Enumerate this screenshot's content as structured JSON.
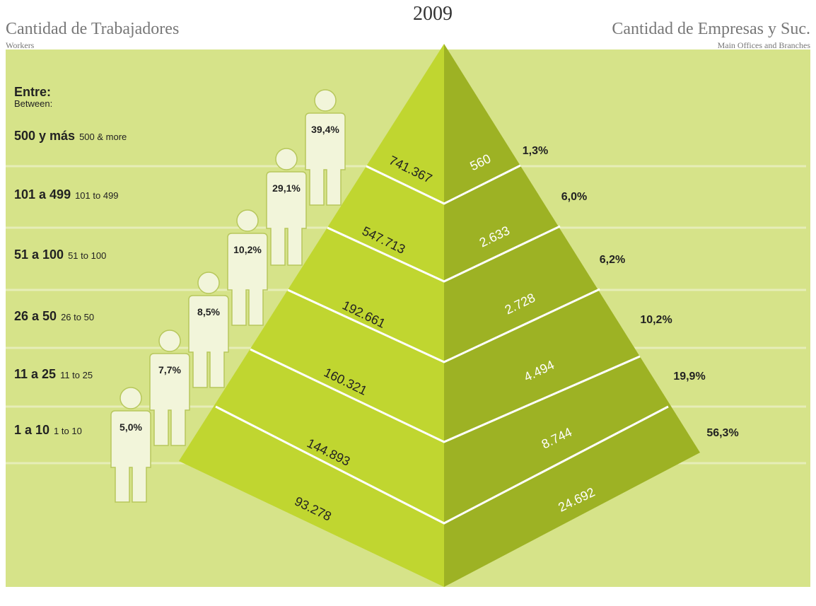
{
  "title": "2009",
  "left_header": {
    "title": "Cantidad de Trabajadores",
    "subtitle": "Workers"
  },
  "right_header": {
    "title": "Cantidad de Empresas y Suc.",
    "subtitle": "Main Offices and Branches"
  },
  "range_heading": {
    "title": "Entre:",
    "subtitle": "Between:"
  },
  "rows": [
    {
      "label": "500 y más",
      "label_en": "500 & more",
      "workers_pct": "39,4%",
      "workers": "741.367",
      "companies": "560",
      "companies_pct": "1,3%"
    },
    {
      "label": "101 a 499",
      "label_en": "101 to 499",
      "workers_pct": "29,1%",
      "workers": "547.713",
      "companies": "2.633",
      "companies_pct": "6,0%"
    },
    {
      "label": "51 a 100",
      "label_en": "51 to 100",
      "workers_pct": "10,2%",
      "workers": "192.661",
      "companies": "2.728",
      "companies_pct": "6,2%"
    },
    {
      "label": "26 a 50",
      "label_en": "26 to 50",
      "workers_pct": "8,5%",
      "workers": "160.321",
      "companies": "4.494",
      "companies_pct": "10,2%"
    },
    {
      "label": "11 a 25",
      "label_en": "11 to 25",
      "workers_pct": "7,7%",
      "workers": "144.893",
      "companies": "8.744",
      "companies_pct": "19,9%"
    },
    {
      "label": "1 a 10",
      "label_en": "1 to 10",
      "workers_pct": "5,0%",
      "workers": "93.278",
      "companies": "24.692",
      "companies_pct": "56,3%"
    }
  ]
}
